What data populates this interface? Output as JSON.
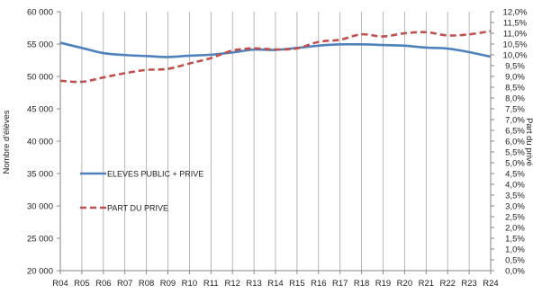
{
  "chart_data": {
    "type": "line",
    "categories": [
      "R04",
      "R05",
      "R06",
      "R07",
      "R08",
      "R09",
      "R10",
      "R11",
      "R12",
      "R13",
      "R14",
      "R15",
      "R16",
      "R17",
      "R18",
      "R19",
      "R20",
      "R21",
      "R22",
      "R23",
      "R24"
    ],
    "y_left": {
      "label": "Nombre d'élèves",
      "min": 20000,
      "max": 60000,
      "step": 5000,
      "tick_labels": [
        "20 000",
        "25 000",
        "30 000",
        "35 000",
        "40 000",
        "45 000",
        "50 000",
        "55 000",
        "60 000"
      ]
    },
    "y_right": {
      "label": "Part du privé",
      "min": 0,
      "max": 12,
      "step": 0.5,
      "tick_labels": [
        "0,0%",
        "0,5%",
        "1,0%",
        "1,5%",
        "2,0%",
        "2,5%",
        "3,0%",
        "3,5%",
        "4,0%",
        "4,5%",
        "5,0%",
        "5,5%",
        "6,0%",
        "6,5%",
        "7,0%",
        "7,5%",
        "8,0%",
        "8,5%",
        "9,0%",
        "9,5%",
        "10,0%",
        "10,5%",
        "11,0%",
        "11,5%",
        "12,0%"
      ]
    },
    "grid": {
      "vertical": true,
      "horizontal": false
    },
    "series": [
      {
        "name": "ELEVES PUBLIC + PRIVE",
        "axis": "left",
        "color": "#4f81bd",
        "style": "solid",
        "values": [
          55200,
          54400,
          53600,
          53300,
          53150,
          53000,
          53200,
          53350,
          53700,
          54150,
          54100,
          54400,
          54750,
          54950,
          54950,
          54850,
          54750,
          54450,
          54300,
          53750,
          53050
        ]
      },
      {
        "name": "PART DU PRIVE",
        "axis": "right",
        "color": "#c0504d",
        "style": "dashed",
        "values": [
          8.8,
          8.75,
          8.95,
          9.15,
          9.3,
          9.35,
          9.6,
          9.85,
          10.2,
          10.3,
          10.25,
          10.3,
          10.6,
          10.7,
          10.95,
          10.85,
          11.0,
          11.05,
          10.9,
          10.95,
          11.1
        ]
      }
    ],
    "legend": {
      "placement": "left-center"
    }
  }
}
